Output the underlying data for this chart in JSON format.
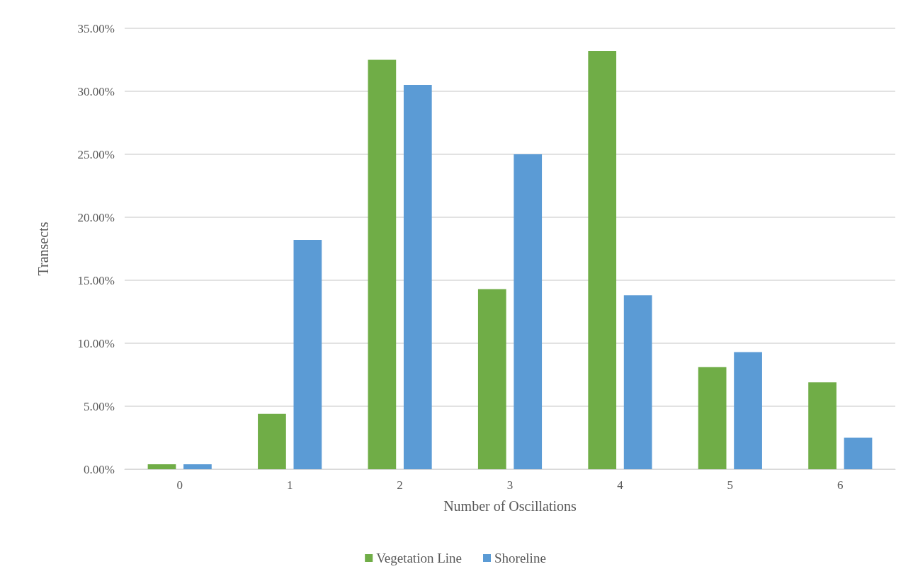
{
  "chart_data": {
    "type": "bar",
    "xlabel": "Number of Oscillations",
    "ylabel": "Transects",
    "categories": [
      "0",
      "1",
      "2",
      "3",
      "4",
      "5",
      "6"
    ],
    "series": [
      {
        "name": "Vegetation Line",
        "color": "#70ad47",
        "values": [
          0.4,
          4.4,
          32.5,
          14.3,
          33.2,
          8.1,
          6.9
        ]
      },
      {
        "name": "Shoreline",
        "color": "#5b9bd5",
        "values": [
          0.4,
          18.2,
          30.5,
          25.0,
          13.8,
          9.3,
          2.5
        ]
      }
    ],
    "ylim": [
      0,
      35
    ],
    "yticks": [
      {
        "value": 0,
        "label": "0.00%"
      },
      {
        "value": 5,
        "label": "5.00%"
      },
      {
        "value": 10,
        "label": "10.00%"
      },
      {
        "value": 15,
        "label": "15.00%"
      },
      {
        "value": 20,
        "label": "20.00%"
      },
      {
        "value": 25,
        "label": "25.00%"
      },
      {
        "value": 30,
        "label": "30.00%"
      },
      {
        "value": 35,
        "label": "35.00%"
      }
    ],
    "grid": "y",
    "legend": "bottom"
  }
}
